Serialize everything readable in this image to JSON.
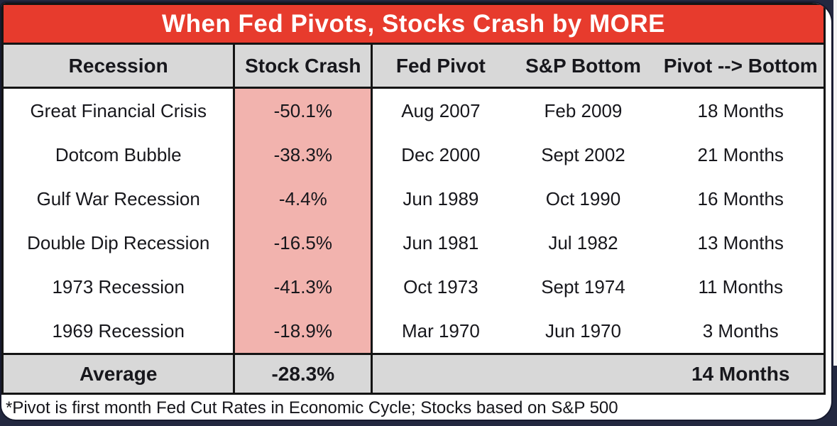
{
  "title": "When Fed Pivots, Stocks Crash by MORE",
  "table": {
    "columns": [
      "Recession",
      "Stock Crash",
      "Fed Pivot",
      "S&P Bottom",
      "Pivot --> Bottom"
    ],
    "rows": [
      {
        "recession": "Great Financial Crisis",
        "stock_crash": "-50.1%",
        "fed_pivot": "Aug 2007",
        "sp_bottom": "Feb 2009",
        "pivot_to_bottom": "18 Months"
      },
      {
        "recession": "Dotcom Bubble",
        "stock_crash": "-38.3%",
        "fed_pivot": "Dec 2000",
        "sp_bottom": "Sept 2002",
        "pivot_to_bottom": "21 Months"
      },
      {
        "recession": "Gulf War Recession",
        "stock_crash": "-4.4%",
        "fed_pivot": "Jun 1989",
        "sp_bottom": "Oct 1990",
        "pivot_to_bottom": "16 Months"
      },
      {
        "recession": "Double Dip Recession",
        "stock_crash": "-16.5%",
        "fed_pivot": "Jun 1981",
        "sp_bottom": "Jul 1982",
        "pivot_to_bottom": "13 Months"
      },
      {
        "recession": "1973 Recession",
        "stock_crash": "-41.3%",
        "fed_pivot": "Oct 1973",
        "sp_bottom": "Sept 1974",
        "pivot_to_bottom": "11 Months"
      },
      {
        "recession": "1969 Recession",
        "stock_crash": "-18.9%",
        "fed_pivot": "Mar 1970",
        "sp_bottom": "Jun 1970",
        "pivot_to_bottom": "3 Months"
      }
    ],
    "average": {
      "label": "Average",
      "stock_crash": "-28.3%",
      "fed_pivot": "",
      "sp_bottom": "",
      "pivot_to_bottom": "14 Months"
    }
  },
  "footnote": "*Pivot is first month Fed Cut Rates in Economic Cycle; Stocks based on S&P 500",
  "colors": {
    "title_bar": "#E73B2D",
    "title_text": "#FFFFFF",
    "header_bg": "#D8D8D8",
    "crash_column_bg": "#F2B3AE",
    "average_row_bg": "#D8D8D8",
    "table_border": "#141414",
    "page_background": "#232840",
    "card_background": "#FFFFFF"
  },
  "chart_data": {
    "type": "table",
    "title": "When Fed Pivots, Stocks Crash by MORE",
    "columns": [
      "Recession",
      "Stock Crash",
      "Fed Pivot",
      "S&P Bottom",
      "Pivot --> Bottom"
    ],
    "rows": [
      [
        "Great Financial Crisis",
        "-50.1%",
        "Aug 2007",
        "Feb 2009",
        "18 Months"
      ],
      [
        "Dotcom Bubble",
        "-38.3%",
        "Dec 2000",
        "Sept 2002",
        "21 Months"
      ],
      [
        "Gulf War Recession",
        "-4.4%",
        "Jun 1989",
        "Oct 1990",
        "16 Months"
      ],
      [
        "Double Dip Recession",
        "-16.5%",
        "Jun 1981",
        "Jul 1982",
        "13 Months"
      ],
      [
        "1973 Recession",
        "-41.3%",
        "Oct 1973",
        "Sept 1974",
        "11 Months"
      ],
      [
        "1969 Recession",
        "-18.9%",
        "Mar 1970",
        "Jun 1970",
        "3 Months"
      ]
    ],
    "average_row": [
      "Average",
      "-28.3%",
      "",
      "",
      "14 Months"
    ],
    "stock_crash_values_pct": [
      -50.1,
      -38.3,
      -4.4,
      -16.5,
      -41.3,
      -18.9
    ],
    "pivot_to_bottom_months": [
      18,
      21,
      16,
      13,
      11,
      3
    ],
    "average_stock_crash_pct": -28.3,
    "average_months": 14,
    "footnote": "*Pivot is first month Fed Cut Rates in Economic Cycle; Stocks based on S&P 500"
  }
}
